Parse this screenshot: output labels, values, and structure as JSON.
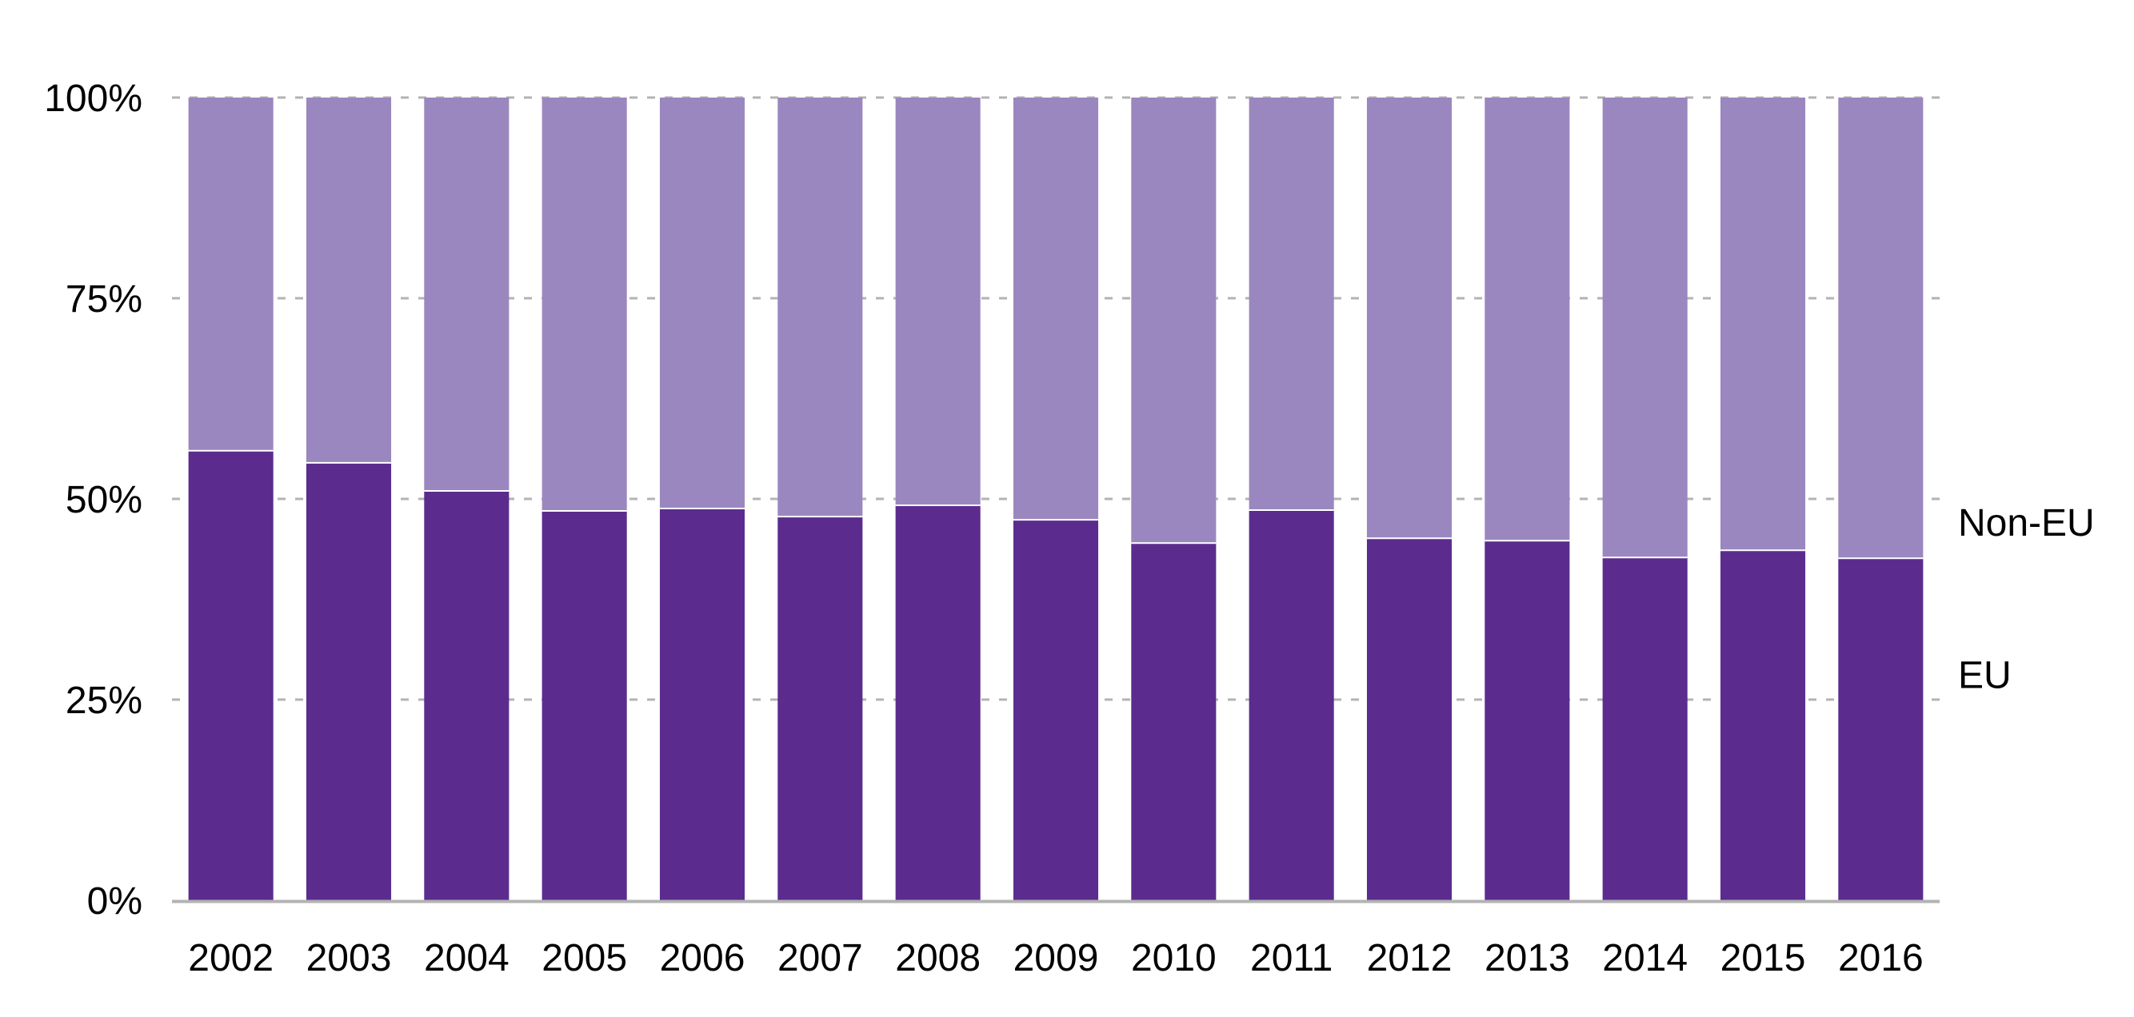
{
  "chart_data": {
    "type": "bar",
    "stacked": true,
    "orientation": "vertical",
    "categories": [
      "2002",
      "2003",
      "2004",
      "2005",
      "2006",
      "2007",
      "2008",
      "2009",
      "2010",
      "2011",
      "2012",
      "2013",
      "2014",
      "2015",
      "2016"
    ],
    "series": [
      {
        "name": "EU",
        "color": "#5b2c8e",
        "values": [
          56,
          54.5,
          51,
          48.5,
          48.8,
          47.8,
          49.2,
          47.4,
          44.5,
          48.6,
          45.1,
          44.8,
          42.7,
          43.6,
          42.6
        ]
      },
      {
        "name": "Non-EU",
        "color": "#9b87bf",
        "values": [
          44,
          45.5,
          49,
          51.5,
          51.2,
          52.2,
          50.8,
          52.6,
          55.5,
          51.4,
          54.9,
          55.2,
          57.3,
          56.4,
          57.4
        ]
      }
    ],
    "y_ticks": [
      "0%",
      "25%",
      "50%",
      "75%",
      "100%"
    ],
    "ylim": [
      0,
      100
    ],
    "legend_position": "right",
    "grid": "horizontal dashed",
    "title": "",
    "xlabel": "",
    "ylabel": ""
  }
}
